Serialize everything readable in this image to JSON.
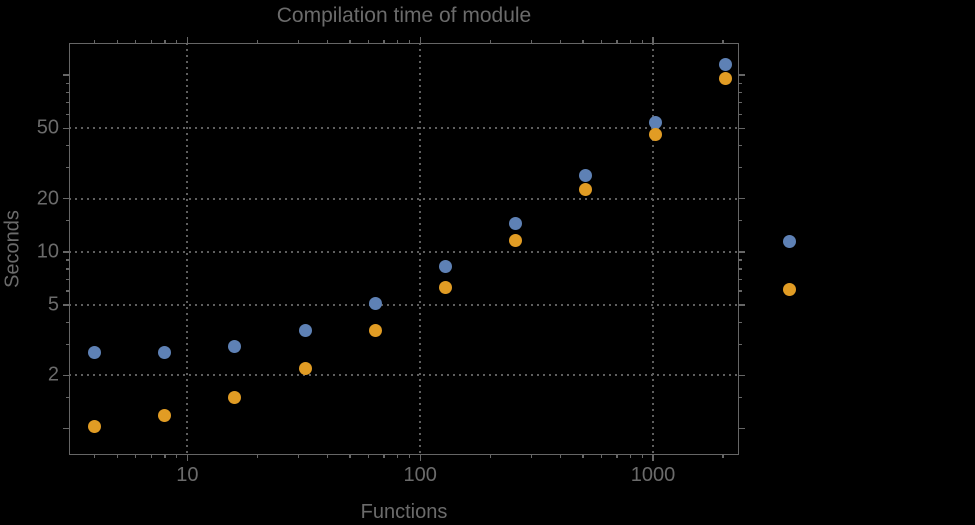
{
  "chart_data": {
    "type": "scatter",
    "title": "Compilation time of module",
    "xlabel": "Functions",
    "ylabel": "Seconds",
    "x_scale": "log",
    "y_scale": "log",
    "xlim": [
      3.1,
      2340
    ],
    "ylim": [
      0.71,
      152
    ],
    "grid": "dotted gray lines at labeled major ticks, frame on all four sides",
    "x_ticks_labeled": [
      10,
      100,
      1000
    ],
    "x_ticks_minor": [
      4,
      5,
      6,
      7,
      8,
      9,
      20,
      30,
      40,
      50,
      60,
      70,
      80,
      90,
      200,
      300,
      400,
      500,
      600,
      700,
      800,
      900,
      2000
    ],
    "y_ticks_labeled": [
      2,
      5,
      10,
      20,
      50
    ],
    "y_ticks_unlabeled_major": [
      1,
      100
    ],
    "y_ticks_minor": [
      1.5,
      3,
      4,
      6,
      7,
      8,
      9,
      15,
      30,
      40,
      60,
      70,
      80,
      90
    ],
    "x": [
      4,
      8,
      16,
      32,
      64,
      128,
      256,
      512,
      1024,
      2048
    ],
    "series": [
      {
        "name": "blue",
        "color": "#5E81B5",
        "values": [
          2.7,
          2.7,
          2.9,
          3.6,
          5.1,
          8.3,
          14.4,
          27,
          54,
          115
        ]
      },
      {
        "name": "orange",
        "color": "#E19C24",
        "values": [
          1.03,
          1.18,
          1.5,
          2.2,
          3.6,
          6.3,
          11.6,
          22.6,
          46,
          96
        ]
      }
    ],
    "legend": {
      "position": "right of plot frame, vertically near middle",
      "entries": [
        {
          "marker_color": "#5E81B5",
          "label": ""
        },
        {
          "marker_color": "#E19C24",
          "label": ""
        }
      ]
    }
  },
  "colors": {
    "background": "#000000",
    "frame": "#666666",
    "grid": "#5e5e5e",
    "text": "#6b6b6b",
    "series_blue": "#5E81B5",
    "series_orange": "#E19C24"
  }
}
